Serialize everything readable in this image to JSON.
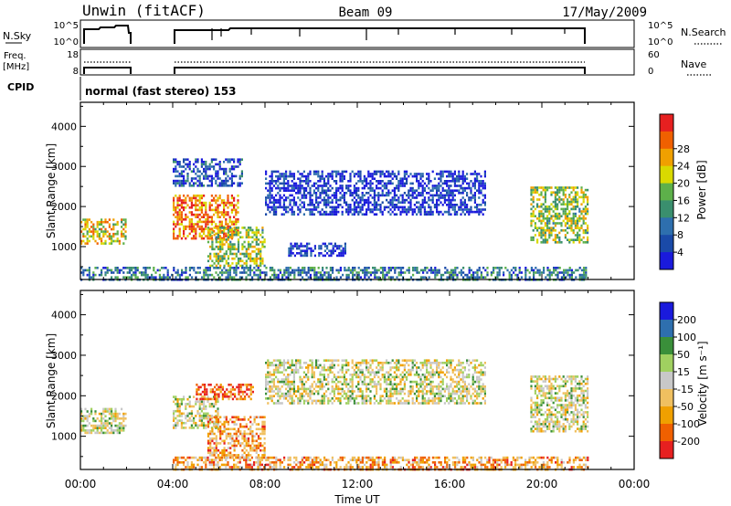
{
  "header": {
    "station": "Unwin (fitACF)",
    "beam": "Beam 09",
    "date": "17/May/2009"
  },
  "info_panel": {
    "nsky_label": "N.Sky",
    "nsky_ticks": [
      "10^5",
      "10^0"
    ],
    "nsearch_label": "N.Search",
    "nsearch_ticks": [
      "10^5",
      "10^0"
    ],
    "freq_label": "Freq.",
    "freq_unit": "[MHz]",
    "freq_ticks": [
      "18",
      "8"
    ],
    "nave_label": "Nave",
    "nave_ticks": [
      "60",
      "0"
    ],
    "cpid_label": "CPID",
    "cpid_value": "normal (fast stereo) 153"
  },
  "colors": {
    "power": [
      "#1a1adc",
      "#1a4aa8",
      "#2e6fae",
      "#3a8f6e",
      "#5db04a",
      "#d9d900",
      "#f0a000",
      "#f06000",
      "#e62020"
    ],
    "velocity": [
      "#e62020",
      "#f06000",
      "#f0a000",
      "#f0c060",
      "#c8c8c8",
      "#a0d060",
      "#3a8f3a",
      "#2e6fae",
      "#1a1adc"
    ]
  },
  "chart_data": [
    {
      "type": "heatmap",
      "name": "power",
      "ylabel": "Slant Range [km]",
      "xlabel": "Time UT",
      "xlim_hours": [
        0,
        24
      ],
      "x_ticks": [
        "00:00",
        "04:00",
        "08:00",
        "12:00",
        "16:00",
        "20:00",
        "00:00"
      ],
      "ylim_km": [
        180,
        4600
      ],
      "y_ticks": [
        1000,
        2000,
        3000,
        4000
      ],
      "colorbar_label": "Power [dB]",
      "colorbar_ticks": [
        "4",
        "8",
        "12",
        "16",
        "20",
        "24",
        "28"
      ],
      "data_gaps_hours": [
        [
          2,
          4
        ],
        [
          22,
          24
        ]
      ],
      "scatter_regions": [
        {
          "t": [
            0.0,
            2.0
          ],
          "r": [
            1100,
            1700
          ],
          "level": 0.65
        },
        {
          "t": [
            4.0,
            6.8
          ],
          "r": [
            1200,
            2300
          ],
          "level": 0.8
        },
        {
          "t": [
            5.5,
            8.0
          ],
          "r": [
            500,
            1500
          ],
          "level": 0.55
        },
        {
          "t": [
            4.0,
            7.0
          ],
          "r": [
            2500,
            3200
          ],
          "level": 0.15
        },
        {
          "t": [
            8.0,
            17.5
          ],
          "r": [
            1800,
            2900
          ],
          "level": 0.1
        },
        {
          "t": [
            9.0,
            11.5
          ],
          "r": [
            800,
            1100
          ],
          "level": 0.1
        },
        {
          "t": [
            19.5,
            22.0
          ],
          "r": [
            1100,
            2500
          ],
          "level": 0.55
        },
        {
          "t": [
            0.0,
            22.0
          ],
          "r": [
            200,
            500
          ],
          "level": 0.3
        }
      ]
    },
    {
      "type": "heatmap",
      "name": "velocity",
      "ylabel": "Slant Range [km]",
      "xlabel": "Time UT",
      "xlim_hours": [
        0,
        24
      ],
      "x_ticks": [
        "00:00",
        "04:00",
        "08:00",
        "12:00",
        "16:00",
        "20:00",
        "00:00"
      ],
      "ylim_km": [
        180,
        4600
      ],
      "y_ticks": [
        1000,
        2000,
        3000,
        4000
      ],
      "colorbar_label": "Velocity [m s⁻¹]",
      "colorbar_ticks": [
        "200",
        "100",
        "50",
        "15",
        "-15",
        "-50",
        "-100",
        "-200"
      ],
      "data_gaps_hours": [
        [
          2,
          4
        ],
        [
          22,
          24
        ]
      ],
      "scatter_regions": [
        {
          "t": [
            0.0,
            2.0
          ],
          "r": [
            1100,
            1700
          ],
          "level": 0.5
        },
        {
          "t": [
            4.0,
            6.0
          ],
          "r": [
            1200,
            2000
          ],
          "level": 0.5
        },
        {
          "t": [
            5.0,
            7.5
          ],
          "r": [
            1900,
            2300
          ],
          "level": 0.15
        },
        {
          "t": [
            5.5,
            8.0
          ],
          "r": [
            500,
            1500
          ],
          "level": 0.3
        },
        {
          "t": [
            8.0,
            17.5
          ],
          "r": [
            1800,
            2900
          ],
          "level": 0.5
        },
        {
          "t": [
            19.5,
            22.0
          ],
          "r": [
            1100,
            2500
          ],
          "level": 0.5
        },
        {
          "t": [
            4.0,
            22.0
          ],
          "r": [
            200,
            500
          ],
          "level": 0.3
        }
      ]
    }
  ]
}
